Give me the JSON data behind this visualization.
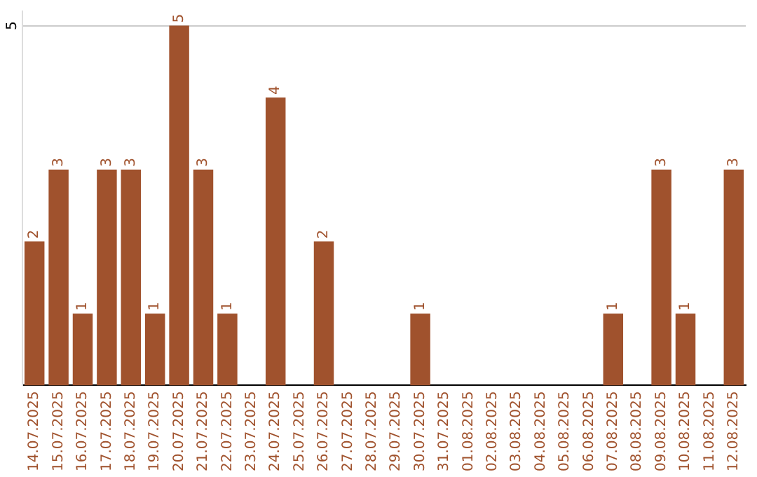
{
  "chart_data": {
    "type": "bar",
    "categories": [
      "14.07.2025",
      "15.07.2025",
      "16.07.2025",
      "17.07.2025",
      "18.07.2025",
      "19.07.2025",
      "20.07.2025",
      "21.07.2025",
      "22.07.2025",
      "23.07.2025",
      "24.07.2025",
      "25.07.2025",
      "26.07.2025",
      "27.07.2025",
      "28.07.2025",
      "29.07.2025",
      "30.07.2025",
      "31.07.2025",
      "01.08.2025",
      "02.08.2025",
      "03.08.2025",
      "04.08.2025",
      "05.08.2025",
      "06.08.2025",
      "07.08.2025",
      "08.08.2025",
      "09.08.2025",
      "10.08.2025",
      "11.08.2025",
      "12.08.2025"
    ],
    "values": [
      2,
      3,
      1,
      3,
      3,
      1,
      5,
      3,
      1,
      0,
      4,
      0,
      2,
      0,
      0,
      0,
      1,
      0,
      0,
      0,
      0,
      0,
      0,
      0,
      1,
      0,
      3,
      1,
      0,
      3
    ],
    "value_labels": [
      "2",
      "3",
      "1",
      "3",
      "3",
      "1",
      "5",
      "3",
      "1",
      null,
      "4",
      null,
      "2",
      null,
      null,
      null,
      "1",
      null,
      null,
      null,
      null,
      null,
      null,
      null,
      "1",
      null,
      "3",
      "1",
      null,
      "3"
    ],
    "color": "#a0522d",
    "ylim": [
      0,
      5.2
    ],
    "yticks": [
      5
    ],
    "grid": "y",
    "legend": false
  }
}
